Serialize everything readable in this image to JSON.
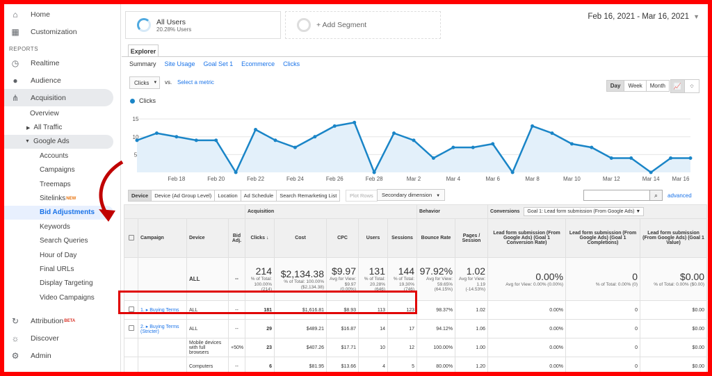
{
  "sidebar": {
    "top_items": [
      {
        "label": "Home",
        "icon": "home-icon"
      },
      {
        "label": "Customization",
        "icon": "grid-icon"
      }
    ],
    "reports_label": "REPORTS",
    "report_items": [
      {
        "label": "Realtime",
        "icon": "clock-icon"
      },
      {
        "label": "Audience",
        "icon": "person-icon"
      },
      {
        "label": "Acquisition",
        "icon": "acquisition-icon"
      }
    ],
    "acquisition_children": {
      "overview": "Overview",
      "all_traffic": "All Traffic",
      "google_ads": "Google Ads",
      "google_ads_items": [
        "Accounts",
        "Campaigns",
        "Treemaps",
        "Sitelinks",
        "Bid Adjustments",
        "Keywords",
        "Search Queries",
        "Hour of Day",
        "Final URLs",
        "Display Targeting",
        "Video Campaigns"
      ],
      "sitelinks_badge": "NEW"
    },
    "bottom_items": [
      {
        "label": "Attribution",
        "icon": "attribution-icon",
        "badge": "BETA"
      },
      {
        "label": "Discover",
        "icon": "lightbulb-icon"
      },
      {
        "label": "Admin",
        "icon": "gear-icon"
      }
    ]
  },
  "segments": {
    "all_users": {
      "name": "All Users",
      "pct": "20.28% Users"
    },
    "add": "+ Add Segment"
  },
  "date_range": "Feb 16, 2021 - Mar 16, 2021",
  "explorer": {
    "tab": "Explorer",
    "subtabs": [
      "Summary",
      "Site Usage",
      "Goal Set 1",
      "Ecommerce",
      "Clicks"
    ],
    "metric": "Clicks",
    "vs": "vs.",
    "select_metric": "Select a metric",
    "periods": [
      "Day",
      "Week",
      "Month"
    ]
  },
  "chart_data": {
    "type": "area",
    "series": [
      {
        "name": "Clicks",
        "values": [
          9,
          11,
          10,
          9,
          9,
          0,
          12,
          9,
          7,
          10,
          13,
          14,
          0,
          11,
          9,
          4,
          7,
          7,
          8,
          0,
          13,
          11,
          8,
          7,
          4,
          4,
          0,
          4,
          4
        ]
      }
    ],
    "x_tick_labels": [
      "Feb 18",
      "Feb 20",
      "Feb 22",
      "Feb 24",
      "Feb 26",
      "Feb 28",
      "Mar 2",
      "Mar 4",
      "Mar 6",
      "Mar 8",
      "Mar 10",
      "Mar 12",
      "Mar 14",
      "Mar 16"
    ],
    "y_ticks": [
      5,
      10,
      15
    ],
    "ylim": [
      0,
      16
    ],
    "color": "#1a85c7"
  },
  "table_controls": {
    "tabs": [
      "Device",
      "Device (Ad Group Level)",
      "Location",
      "Ad Schedule",
      "Search Remarketing List"
    ],
    "plot_rows": "Plot Rows",
    "secondary_dimension": "Secondary dimension",
    "advanced": "advanced"
  },
  "table": {
    "groups": {
      "acquisition": "Acquisition",
      "behavior": "Behavior",
      "conversions": "Conversions",
      "goal_select": "Goal 1: Lead form submission (From Google Ads)"
    },
    "headers": {
      "campaign": "Campaign",
      "device": "Device",
      "bid_adj": "Bid Adj.",
      "clicks": "Clicks",
      "cost": "Cost",
      "cpc": "CPC",
      "users": "Users",
      "sessions": "Sessions",
      "bounce": "Bounce Rate",
      "pages": "Pages / Session",
      "conv_rate": "Lead form submission (From Google Ads) (Goal 1 Conversion Rate)",
      "completions": "Lead form submission (From Google Ads) (Goal 1 Completions)",
      "value": "Lead form submission (From Google Ads) (Goal 1 Value)"
    },
    "totals": {
      "device": "ALL",
      "bid": "--",
      "clicks": "214",
      "clicks_sub": "% of Total: 100.00% (214)",
      "cost": "$2,134.38",
      "cost_sub": "% of Total: 100.00% ($2,134.38)",
      "cpc": "$9.97",
      "cpc_sub": "Avg for View: $9.97 (0.00%)",
      "users": "131",
      "users_sub": "% of Total: 20.28% (646)",
      "sessions": "144",
      "sessions_sub": "% of Total: 19.30% (746)",
      "bounce": "97.92%",
      "bounce_sub": "Avg for View: 59.65% (64.15%)",
      "pages": "1.02",
      "pages_sub": "Avg for View: 1.19 (-14.53%)",
      "conv_rate": "0.00%",
      "conv_rate_sub": "Avg for View: 0.00% (0.00%)",
      "completions": "0",
      "completions_sub": "% of Total: 0.00% (0)",
      "value": "$0.00",
      "value_sub": "% of Total: 0.00% ($0.00)"
    },
    "rows": [
      {
        "idx": "1.",
        "campaign": "Buying Terms",
        "device": "ALL",
        "bid": "--",
        "clicks": "181",
        "cost": "$1,616.81",
        "cpc": "$8.93",
        "users": "113",
        "sessions": "123",
        "bounce": "98.37%",
        "pages": "1.02",
        "conv_rate": "0.00%",
        "completions": "0",
        "value": "$0.00"
      },
      {
        "idx": "2.",
        "campaign": "Buying Terms (Stricter)",
        "device": "ALL",
        "bid": "--",
        "clicks": "29",
        "cost": "$489.21",
        "cpc": "$16.87",
        "users": "14",
        "sessions": "17",
        "bounce": "94.12%",
        "pages": "1.06",
        "conv_rate": "0.00%",
        "completions": "0",
        "value": "$0.00"
      },
      {
        "idx": "",
        "campaign": "",
        "device": "Mobile devices with full browsers",
        "bid": "+50%",
        "clicks": "23",
        "cost": "$407.26",
        "cpc": "$17.71",
        "users": "10",
        "sessions": "12",
        "bounce": "100.00%",
        "pages": "1.00",
        "conv_rate": "0.00%",
        "completions": "0",
        "value": "$0.00"
      },
      {
        "idx": "",
        "campaign": "",
        "device": "Computers",
        "bid": "--",
        "clicks": "6",
        "cost": "$81.95",
        "cpc": "$13.66",
        "users": "4",
        "sessions": "5",
        "bounce": "80.00%",
        "pages": "1.20",
        "conv_rate": "0.00%",
        "completions": "0",
        "value": "$0.00"
      }
    ]
  }
}
